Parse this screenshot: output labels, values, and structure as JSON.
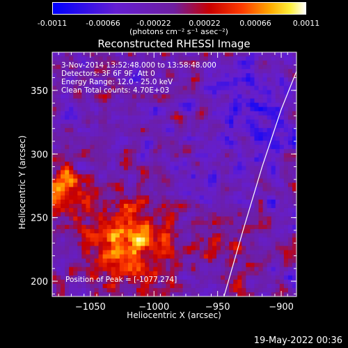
{
  "colorbar": {
    "ticks": [
      "-0.0011",
      "-0.00066",
      "-0.00022",
      "0.00022",
      "0.00066",
      "0.0011"
    ],
    "units": "(photons cm⁻² s⁻¹ asec⁻²)"
  },
  "annotations": {
    "time": "3-Nov-2014 13:52:48.000 to 13:58:48.000",
    "detectors": "Detectors: 3F 6F 9F, Att 0",
    "energy": "Energy Range: 12.0 - 25.0 keV",
    "clean": "Clean    Total counts: 4.70E+03",
    "peak": "Position of Peak = [-1077,274]"
  },
  "timestamp": "19-May-2022 00:36",
  "chart_data": {
    "type": "heatmap",
    "title": "Reconstructed RHESSI Image",
    "xlabel": "Heliocentric X (arcsec)",
    "ylabel": "Heliocentric Y (arcsec)",
    "xlim": [
      -1080,
      -888
    ],
    "ylim": [
      188,
      380
    ],
    "xticks": [
      -1050,
      -1000,
      -950,
      -900
    ],
    "xtick_labels": [
      "−1050",
      "−1000",
      "−950",
      "−900"
    ],
    "yticks": [
      200,
      250,
      300,
      350
    ],
    "ytick_labels": [
      "200",
      "250",
      "300",
      "350"
    ],
    "color_range": [
      -0.0011,
      0.0011
    ],
    "peak_position": [
      -1077,
      274
    ],
    "limb_curve": [
      [
        -945,
        188
      ],
      [
        -930,
        240
      ],
      [
        -915,
        290
      ],
      [
        -900,
        335
      ],
      [
        -888,
        365
      ]
    ]
  }
}
